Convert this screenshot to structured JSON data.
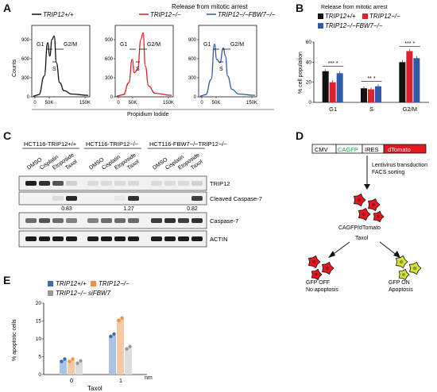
{
  "panels": {
    "A": "A",
    "B": "B",
    "C": "C",
    "D": "D",
    "E": "E"
  },
  "panelA": {
    "title": "Release from mitotic arrest",
    "ylabel": "Counts",
    "xlabel": "Propidium Iodide",
    "legends": [
      "TRIP12+/+",
      "TRIP12−/−",
      "TRIP12−/−FBW7−/−"
    ],
    "colors": [
      "#111111",
      "#e0202a",
      "#2e5aa8"
    ],
    "yticks": [
      "0",
      "300",
      "600",
      "900"
    ],
    "xticks": [
      "0",
      "50K",
      "150K"
    ],
    "gates": {
      "g1": "G1",
      "s": "S",
      "g2m": "G2/M"
    }
  },
  "chart_data": [
    {
      "type": "bar",
      "title": "Release from mitotic arrest",
      "ylabel": "% cell population",
      "categories": [
        "G1",
        "S",
        "G2/M"
      ],
      "ylim": [
        0,
        60
      ],
      "yticks": [
        "0",
        "20",
        "40",
        "60"
      ],
      "series": [
        {
          "name": "TRIP12+/+",
          "color": "#111111",
          "values": [
            31,
            14,
            40
          ]
        },
        {
          "name": "TRIP12−/−",
          "color": "#e0202a",
          "values": [
            20,
            13,
            51
          ]
        },
        {
          "name": "TRIP12−/−FBW7−/−",
          "color": "#2e5aa8",
          "values": [
            29,
            16,
            44
          ]
        }
      ],
      "significance": [
        "*** *",
        "** *",
        "*** *"
      ]
    },
    {
      "type": "bar",
      "ylabel": "% apoptotic cells",
      "xlabel": "Taxol",
      "categories": [
        "0",
        "1"
      ],
      "unit": "nm",
      "ylim": [
        0,
        20
      ],
      "yticks": [
        "0",
        "5",
        "10",
        "15",
        "20"
      ],
      "series": [
        {
          "name": "TRIP12+/+",
          "color": "#a9c2e8",
          "dot": "#4169b0",
          "values": [
            4,
            11
          ]
        },
        {
          "name": "TRIP12−/−",
          "color": "#f5c9a3",
          "dot": "#ee8f4a",
          "values": [
            4,
            15.5
          ]
        },
        {
          "name": "TRIP12−/− siFBW7",
          "color": "#dcdcdc",
          "dot": "#9a9a9a",
          "values": [
            3.5,
            7.5
          ]
        }
      ]
    }
  ],
  "panelC": {
    "groups": [
      "HCT116-TRIP12+/+",
      "HCT116-TRIP12−/−",
      "HCT116-FBW7−/−TRIP12−/−"
    ],
    "lanes": [
      "DMSO",
      "Cisplatin",
      "Etoposide",
      "Taxol"
    ],
    "blots": [
      "TRIP12",
      "Cleaved Caspase-7",
      "Caspase-7",
      "ACTIN"
    ],
    "quant": [
      "0.83",
      "1.27",
      "0.82"
    ]
  },
  "panelD": {
    "construct": [
      "CMV",
      "CAGFP",
      "IRES",
      "dTomato"
    ],
    "construct_colors": [
      "#ffffff",
      "#ffffff",
      "#ffffff",
      "#e8161e"
    ],
    "step1": "Lentivirus transduction",
    "step2": "FACS sorting",
    "cells_label": "CAGFP/dTomato",
    "treatment": "Taxol",
    "left_l1": "GFP OFF",
    "left_l2": "No apoptosis",
    "right_l1": "GFP ON",
    "right_l2": "Apoptosis"
  },
  "panelE": {
    "legend": [
      "TRIP12+/+",
      "TRIP12−/−",
      "TRIP12−/− siFBW7"
    ]
  }
}
